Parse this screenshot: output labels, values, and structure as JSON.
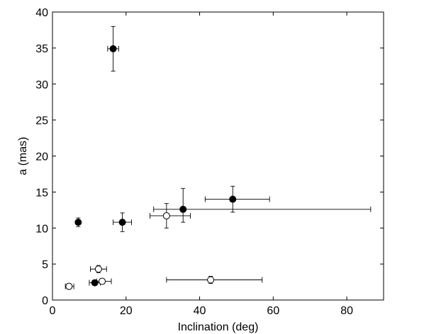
{
  "chart_data": {
    "type": "scatter",
    "xlabel": "Inclination (deg)",
    "ylabel": "a (mas)",
    "xlim": [
      0,
      90
    ],
    "ylim": [
      0,
      40
    ],
    "xticks": [
      0,
      20,
      40,
      60,
      80
    ],
    "yticks": [
      0,
      5,
      10,
      15,
      20,
      25,
      30,
      35,
      40
    ],
    "grid": false,
    "series": [
      {
        "marker": "filled-circle",
        "color": "#000000",
        "points": [
          {
            "x": 16.5,
            "y": 34.9,
            "xerr": [
              1.5,
              1.5
            ],
            "yerr": [
              3.1,
              3.1
            ]
          },
          {
            "x": 7.0,
            "y": 10.8,
            "xerr": [
              0.0,
              0.0
            ],
            "yerr": [
              0.6,
              0.6
            ]
          },
          {
            "x": 19.0,
            "y": 10.8,
            "xerr": [
              2.5,
              2.5
            ],
            "yerr": [
              1.3,
              1.3
            ]
          },
          {
            "x": 35.5,
            "y": 12.6,
            "xerr": [
              8.0,
              51.0
            ],
            "yerr": [
              1.8,
              2.9
            ]
          },
          {
            "x": 49.0,
            "y": 14.0,
            "xerr": [
              7.5,
              10.0
            ],
            "yerr": [
              1.8,
              1.8
            ]
          },
          {
            "x": 11.5,
            "y": 2.4,
            "xerr": [
              1.5,
              1.5
            ],
            "yerr": [
              0.3,
              0.3
            ]
          }
        ]
      },
      {
        "marker": "open-circle",
        "color": "#000000",
        "points": [
          {
            "x": 31.0,
            "y": 11.7,
            "xerr": [
              4.5,
              6.5
            ],
            "yerr": [
              1.7,
              1.7
            ]
          },
          {
            "x": 12.5,
            "y": 4.3,
            "xerr": [
              2.2,
              2.2
            ],
            "yerr": [
              0.5,
              0.5
            ]
          },
          {
            "x": 13.5,
            "y": 2.6,
            "xerr": [
              1.5,
              2.5
            ],
            "yerr": [
              0.3,
              0.3
            ]
          },
          {
            "x": 4.5,
            "y": 1.9,
            "xerr": [
              1.0,
              1.3
            ],
            "yerr": [
              0.3,
              0.3
            ]
          },
          {
            "x": 43.0,
            "y": 2.8,
            "xerr": [
              12.0,
              14.0
            ],
            "yerr": [
              0.5,
              0.5
            ]
          }
        ]
      }
    ]
  }
}
